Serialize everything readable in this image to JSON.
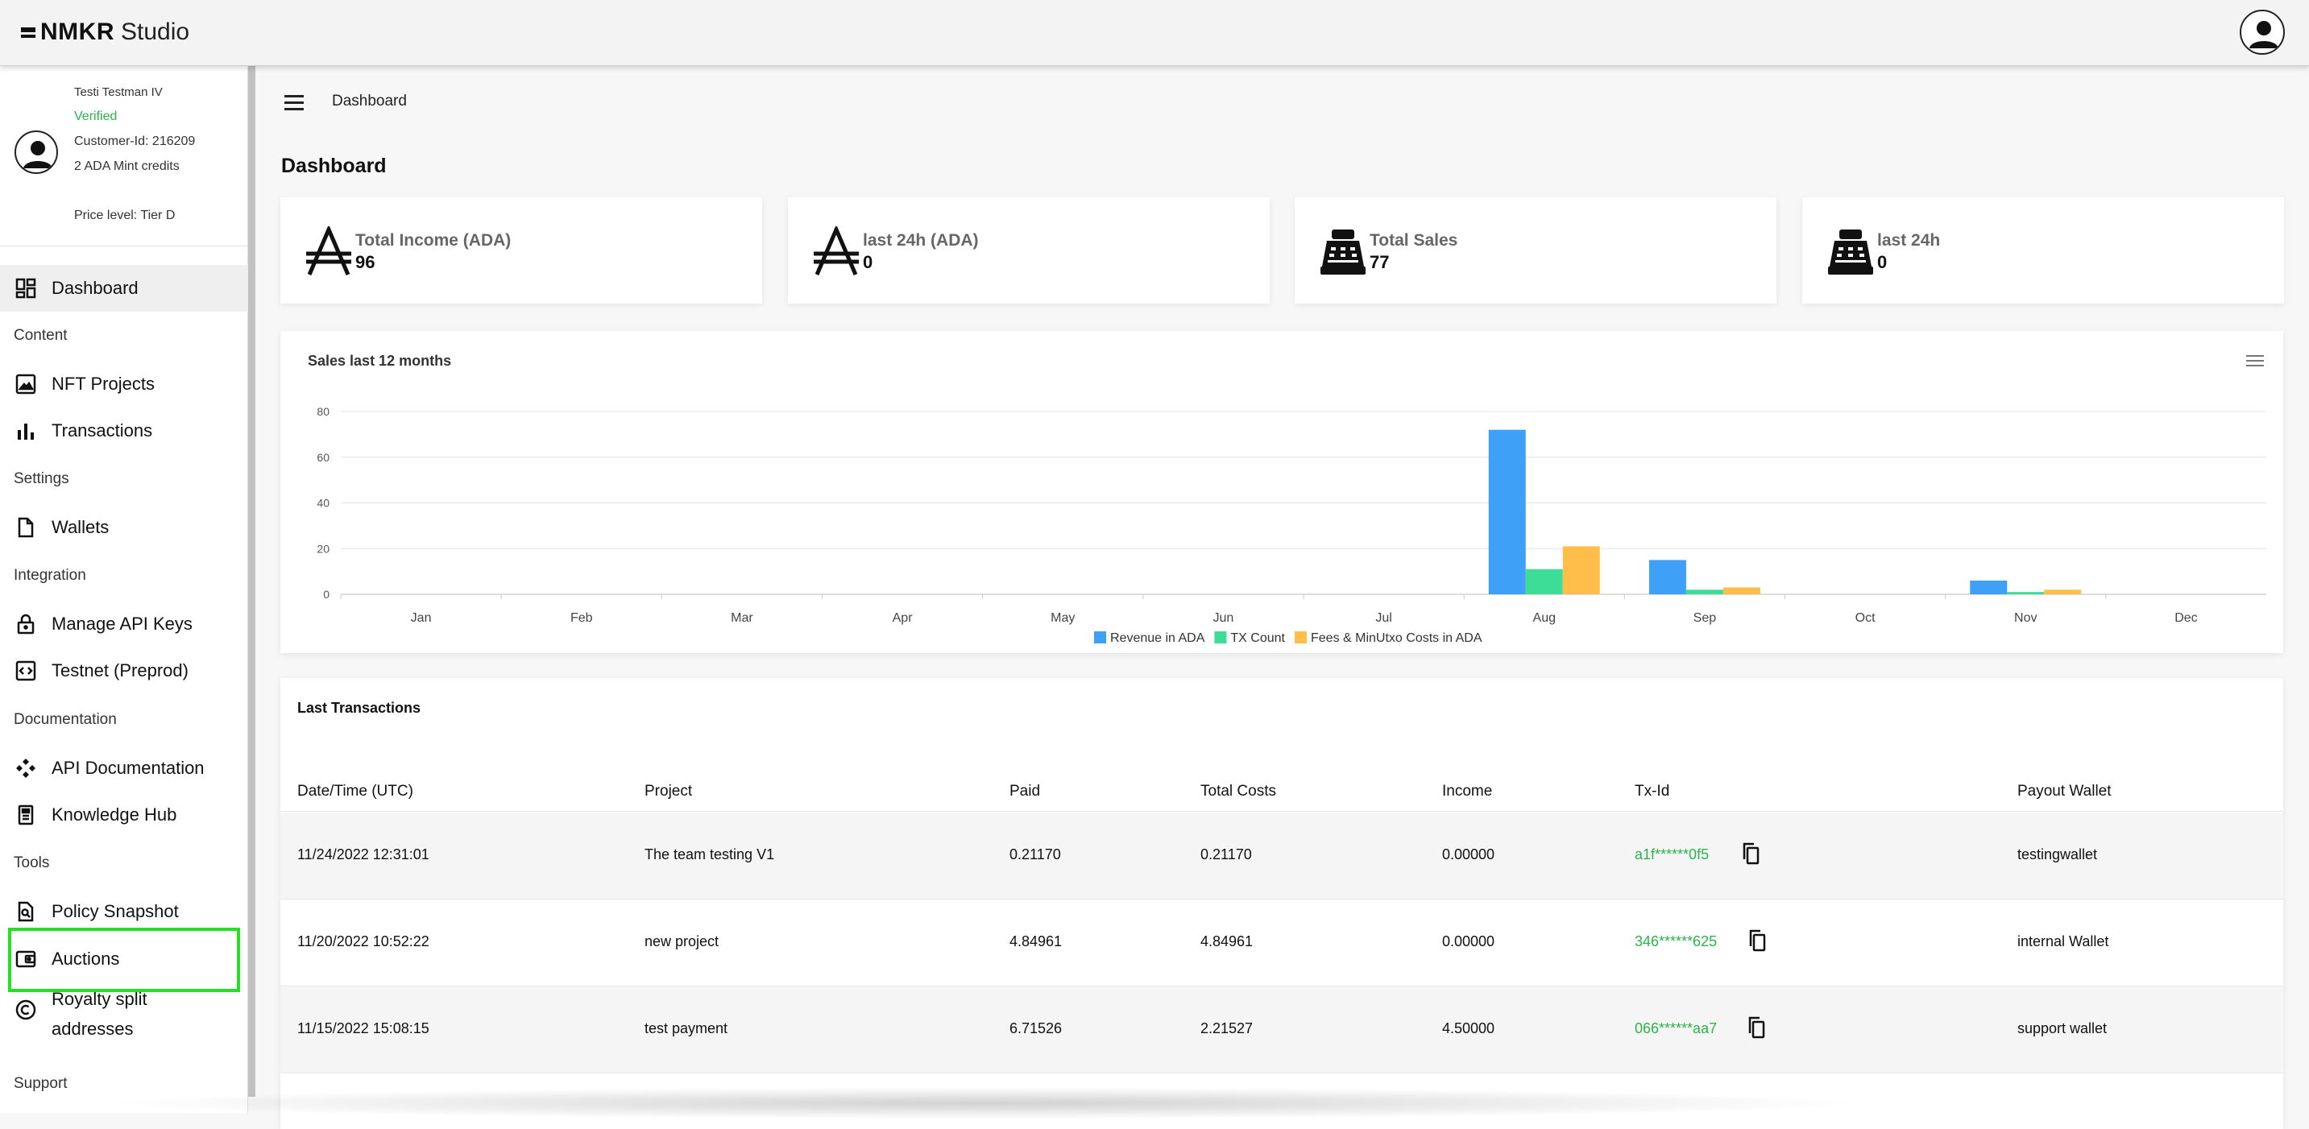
{
  "app": {
    "brand": "NMKR",
    "product": "Studio"
  },
  "profile": {
    "name": "Testi Testman IV",
    "status": "Verified",
    "customer_id": "Customer-Id: 216209",
    "credits": "2 ADA Mint credits",
    "price_level": "Price level: Tier D"
  },
  "nav": {
    "dashboard": "Dashboard",
    "section_content": "Content",
    "nft_projects": "NFT Projects",
    "transactions": "Transactions",
    "section_settings": "Settings",
    "wallets": "Wallets",
    "section_integration": "Integration",
    "api_keys": "Manage API Keys",
    "testnet": "Testnet (Preprod)",
    "section_documentation": "Documentation",
    "api_docs": "API Documentation",
    "knowledge_hub": "Knowledge Hub",
    "section_tools": "Tools",
    "policy_snapshot": "Policy Snapshot",
    "auctions": "Auctions",
    "royalty_line1": "Royalty split",
    "royalty_line2": "addresses",
    "section_support": "Support"
  },
  "breadcrumb": "Dashboard",
  "page_title": "Dashboard",
  "stats": [
    {
      "title": "Total Income (ADA)",
      "value": "96",
      "icon": "ada-icon"
    },
    {
      "title": "last 24h (ADA)",
      "value": "0",
      "icon": "ada-icon"
    },
    {
      "title": "Total Sales",
      "value": "77",
      "icon": "cash-register-icon"
    },
    {
      "title": "last 24h",
      "value": "0",
      "icon": "cash-register-icon"
    }
  ],
  "chart": {
    "title": "Sales last 12 months"
  },
  "chart_data": {
    "type": "bar",
    "title": "Sales last 12 months",
    "categories": [
      "Jan",
      "Feb",
      "Mar",
      "Apr",
      "May",
      "Jun",
      "Jul",
      "Aug",
      "Sep",
      "Oct",
      "Nov",
      "Dec"
    ],
    "series": [
      {
        "name": "Revenue in ADA",
        "color": "#3fa0f7",
        "values": [
          0,
          0,
          0,
          0,
          0,
          0,
          0,
          72,
          15,
          0,
          6,
          0
        ]
      },
      {
        "name": "TX Count",
        "color": "#3ddc97",
        "values": [
          0,
          0,
          0,
          0,
          0,
          0,
          0,
          11,
          2,
          0,
          1,
          0
        ]
      },
      {
        "name": "Fees & MinUtxo Costs in ADA",
        "color": "#ffbd4a",
        "values": [
          0,
          0,
          0,
          0,
          0,
          0,
          0,
          21,
          3,
          0,
          2,
          0
        ]
      }
    ],
    "yticks": [
      0,
      20,
      40,
      60,
      80
    ],
    "ylim": [
      0,
      80
    ],
    "grid": true,
    "legend": "bottom-center"
  },
  "transactions": {
    "title": "Last Transactions",
    "columns": [
      "Date/Time (UTC)",
      "Project",
      "Paid",
      "Total Costs",
      "Income",
      "Tx-Id",
      "Payout Wallet"
    ],
    "rows": [
      {
        "date": "11/24/2022 12:31:01",
        "project": "The team testing V1",
        "paid": "0.21170",
        "costs": "0.21170",
        "income": "0.00000",
        "txid": "a1f******0f5",
        "wallet": "testingwallet"
      },
      {
        "date": "11/20/2022 10:52:22",
        "project": "new project",
        "paid": "4.84961",
        "costs": "4.84961",
        "income": "0.00000",
        "txid": "346******625",
        "wallet": "internal Wallet"
      },
      {
        "date": "11/15/2022 15:08:15",
        "project": "test payment",
        "paid": "6.71526",
        "costs": "2.21527",
        "income": "4.50000",
        "txid": "066******aa7",
        "wallet": "support wallet"
      }
    ]
  }
}
